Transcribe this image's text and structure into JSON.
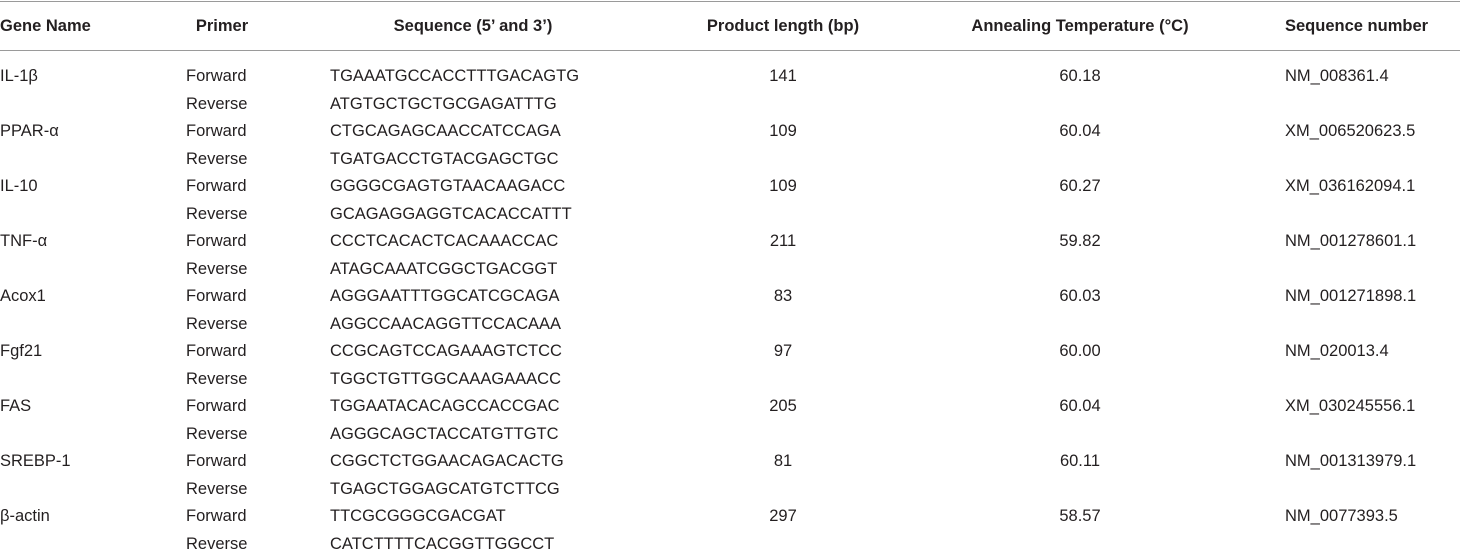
{
  "table": {
    "header": [
      "Gene Name",
      "Primer",
      "Sequence (5’ and 3’)",
      "Product length (bp)",
      "Annealing Temperature (°C)",
      "Sequence number"
    ],
    "rows": [
      {
        "gene": "IL-1β",
        "primers": [
          {
            "primer": "Forward",
            "sequence": "TGAAATGCCACCTTTGACAGTG"
          },
          {
            "primer": "Reverse",
            "sequence": "ATGTGCTGCTGCGAGATTTG"
          }
        ],
        "product_length": "141",
        "annealing_temperature": "60.18",
        "sequence_number": "NM_008361.4"
      },
      {
        "gene": "PPAR-α",
        "primers": [
          {
            "primer": "Forward",
            "sequence": "CTGCAGAGCAACCATCCAGA"
          },
          {
            "primer": "Reverse",
            "sequence": "TGATGACCTGTACGAGCTGC"
          }
        ],
        "product_length": "109",
        "annealing_temperature": "60.04",
        "sequence_number": "XM_006520623.5"
      },
      {
        "gene": "IL-10",
        "primers": [
          {
            "primer": "Forward",
            "sequence": "GGGGCGAGTGTAACAAGACC"
          },
          {
            "primer": "Reverse",
            "sequence": "GCAGAGGAGGTCACACCATTT"
          }
        ],
        "product_length": "109",
        "annealing_temperature": "60.27",
        "sequence_number": "XM_036162094.1"
      },
      {
        "gene": "TNF-α",
        "primers": [
          {
            "primer": "Forward",
            "sequence": "CCCTCACACTCACAAACCAC"
          },
          {
            "primer": "Reverse",
            "sequence": "ATAGCAAATCGGCTGACGGT"
          }
        ],
        "product_length": "211",
        "annealing_temperature": "59.82",
        "sequence_number": "NM_001278601.1"
      },
      {
        "gene": "Acox1",
        "primers": [
          {
            "primer": "Forward",
            "sequence": "AGGGAATTTGGCATCGCAGA"
          },
          {
            "primer": "Reverse",
            "sequence": "AGGCCAACAGGTTCCACAAA"
          }
        ],
        "product_length": "83",
        "annealing_temperature": "60.03",
        "sequence_number": "NM_001271898.1"
      },
      {
        "gene": "Fgf21",
        "primers": [
          {
            "primer": "Forward",
            "sequence": "CCGCAGTCCAGAAAGTCTCC"
          },
          {
            "primer": "Reverse",
            "sequence": "TGGCTGTTGGCAAAGAAACC"
          }
        ],
        "product_length": "97",
        "annealing_temperature": "60.00",
        "sequence_number": "NM_020013.4"
      },
      {
        "gene": "FAS",
        "primers": [
          {
            "primer": "Forward",
            "sequence": "TGGAATACACAGCCACCGAC"
          },
          {
            "primer": "Reverse",
            "sequence": "AGGGCAGCTACCATGTTGTC"
          }
        ],
        "product_length": "205",
        "annealing_temperature": "60.04",
        "sequence_number": "XM_030245556.1"
      },
      {
        "gene": "SREBP-1",
        "primers": [
          {
            "primer": "Forward",
            "sequence": "CGGCTCTGGAACAGACACTG"
          },
          {
            "primer": "Reverse",
            "sequence": "TGAGCTGGAGCATGTCTTCG"
          }
        ],
        "product_length": "81",
        "annealing_temperature": "60.11",
        "sequence_number": "NM_001313979.1"
      },
      {
        "gene": "β-actin",
        "primers": [
          {
            "primer": "Forward",
            "sequence": "TTCGCGGGCGACGAT"
          },
          {
            "primer": "Reverse",
            "sequence": "CATCTTTTCACGGTTGGCCT"
          }
        ],
        "product_length": "297",
        "annealing_temperature": "58.57",
        "sequence_number": "NM_0077393.5"
      }
    ]
  }
}
